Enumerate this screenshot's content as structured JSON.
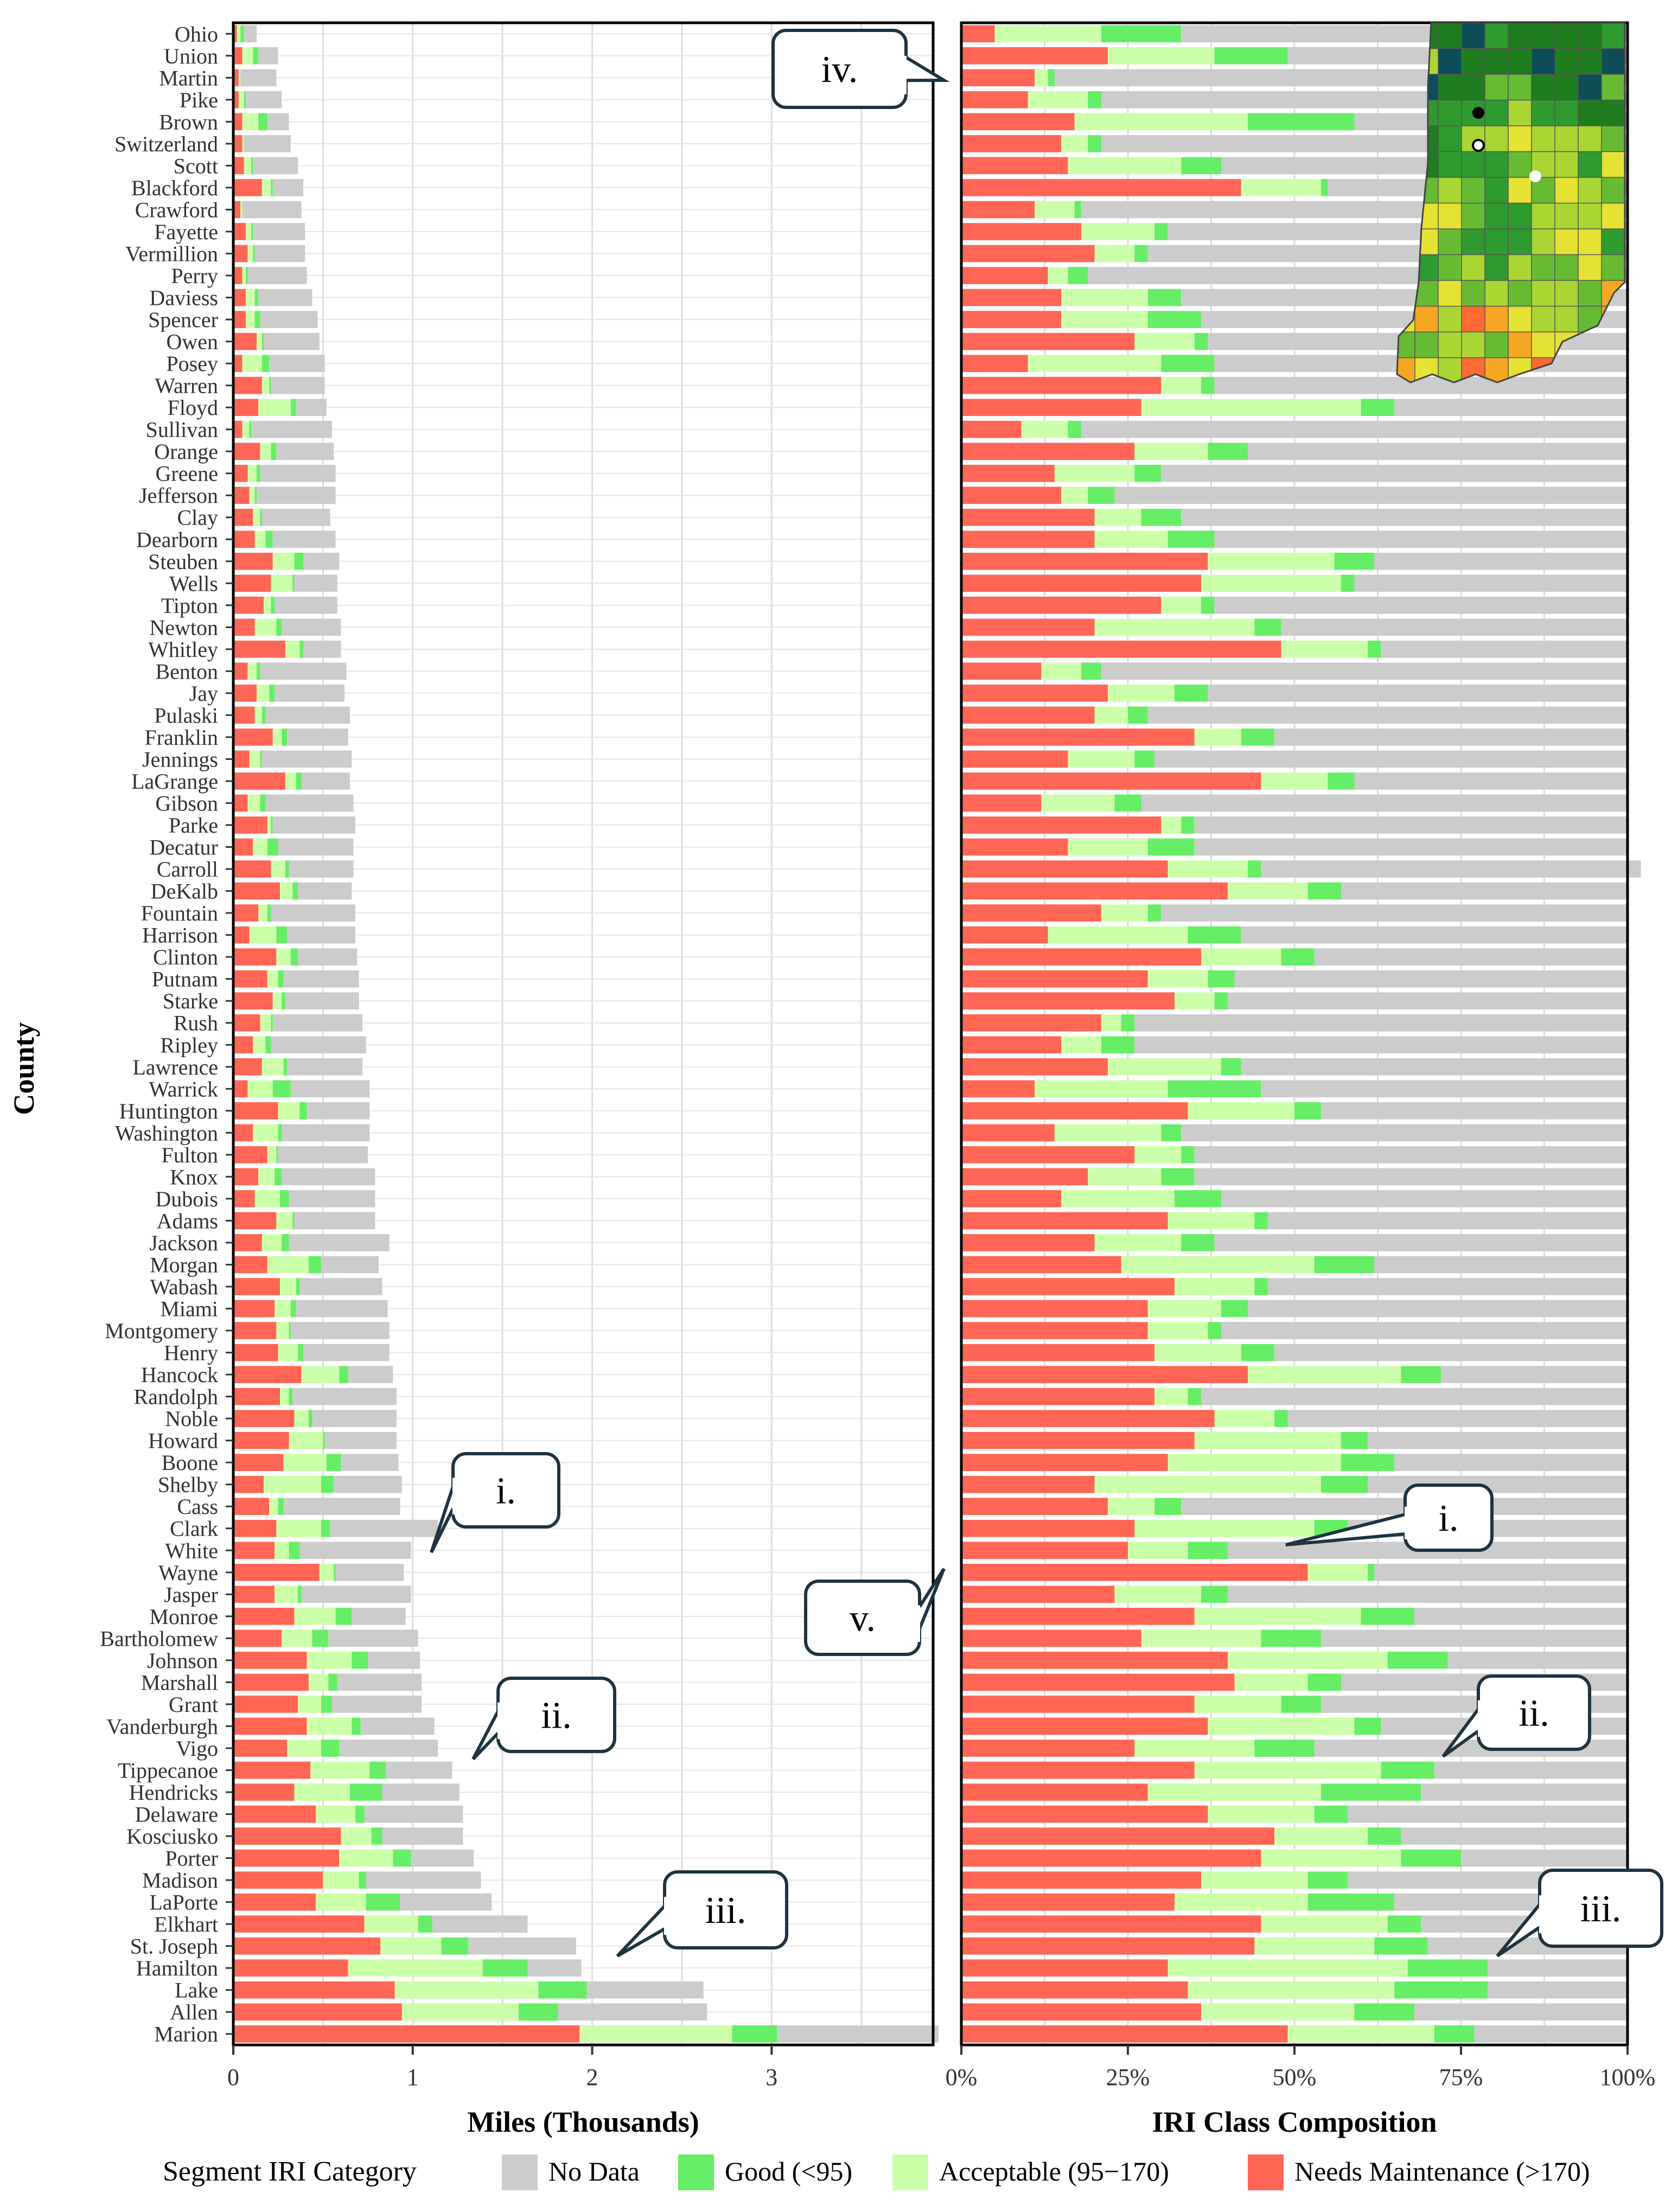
{
  "chart_data": {
    "type": "bar",
    "y_axis_title": "County",
    "legend": {
      "title": "Segment IRI Category",
      "placement": "bottom",
      "items": [
        {
          "key": "nodata",
          "label": "No Data",
          "color": "#cccccc"
        },
        {
          "key": "good",
          "label": "Good (<95)",
          "color": "#66ee66"
        },
        {
          "key": "acceptable",
          "label": "Acceptable (95−170)",
          "color": "#ccffaa"
        },
        {
          "key": "needs",
          "label": "Needs Maintenance (>170)",
          "color": "#ff6655"
        }
      ]
    },
    "category_order": [
      "needs",
      "acceptable",
      "good",
      "nodata"
    ],
    "counties": [
      "Ohio",
      "Union",
      "Martin",
      "Pike",
      "Brown",
      "Switzerland",
      "Scott",
      "Blackford",
      "Crawford",
      "Fayette",
      "Vermillion",
      "Perry",
      "Daviess",
      "Spencer",
      "Owen",
      "Posey",
      "Warren",
      "Floyd",
      "Sullivan",
      "Orange",
      "Greene",
      "Jefferson",
      "Clay",
      "Dearborn",
      "Steuben",
      "Wells",
      "Tipton",
      "Newton",
      "Whitley",
      "Benton",
      "Jay",
      "Pulaski",
      "Franklin",
      "Jennings",
      "LaGrange",
      "Gibson",
      "Parke",
      "Decatur",
      "Carroll",
      "DeKalb",
      "Fountain",
      "Harrison",
      "Clinton",
      "Putnam",
      "Starke",
      "Rush",
      "Ripley",
      "Lawrence",
      "Warrick",
      "Huntington",
      "Washington",
      "Fulton",
      "Knox",
      "Dubois",
      "Adams",
      "Jackson",
      "Morgan",
      "Wabash",
      "Miami",
      "Montgomery",
      "Henry",
      "Hancock",
      "Randolph",
      "Noble",
      "Howard",
      "Boone",
      "Shelby",
      "Cass",
      "Clark",
      "White",
      "Wayne",
      "Jasper",
      "Monroe",
      "Bartholomew",
      "Johnson",
      "Marshall",
      "Grant",
      "Vanderburgh",
      "Vigo",
      "Tippecanoe",
      "Hendricks",
      "Delaware",
      "Kosciusko",
      "Porter",
      "Madison",
      "LaPorte",
      "Elkhart",
      "St. Joseph",
      "Hamilton",
      "Lake",
      "Allen",
      "Marion"
    ],
    "panels": [
      {
        "id": "miles",
        "xlabel": "Miles (Thousands)",
        "xlim": [
          0,
          3.9
        ],
        "xticks": [
          0,
          1,
          2,
          3
        ],
        "xtick_labels": [
          "0",
          "1",
          "2",
          "3"
        ],
        "series": [
          {
            "key": "needs",
            "values": [
              0.02,
              0.05,
              0.03,
              0.03,
              0.05,
              0.05,
              0.06,
              0.16,
              0.04,
              0.07,
              0.08,
              0.05,
              0.07,
              0.07,
              0.13,
              0.05,
              0.16,
              0.14,
              0.05,
              0.15,
              0.08,
              0.09,
              0.11,
              0.12,
              0.22,
              0.21,
              0.17,
              0.12,
              0.29,
              0.08,
              0.13,
              0.12,
              0.22,
              0.09,
              0.29,
              0.08,
              0.19,
              0.11,
              0.21,
              0.26,
              0.14,
              0.09,
              0.24,
              0.19,
              0.22,
              0.15,
              0.11,
              0.16,
              0.08,
              0.25,
              0.11,
              0.19,
              0.14,
              0.12,
              0.24,
              0.16,
              0.19,
              0.26,
              0.23,
              0.24,
              0.25,
              0.38,
              0.26,
              0.34,
              0.31,
              0.28,
              0.17,
              0.2,
              0.24,
              0.23,
              0.48,
              0.23,
              0.34,
              0.27,
              0.41,
              0.42,
              0.36,
              0.41,
              0.3,
              0.43,
              0.34,
              0.46,
              0.6,
              0.59,
              0.5,
              0.46,
              0.73,
              0.82,
              0.64,
              0.9,
              0.94,
              1.93
            ]
          },
          {
            "key": "acceptable",
            "values": [
              0.02,
              0.06,
              0.01,
              0.03,
              0.09,
              0.01,
              0.04,
              0.05,
              0.01,
              0.03,
              0.03,
              0.02,
              0.05,
              0.05,
              0.03,
              0.11,
              0.04,
              0.18,
              0.04,
              0.06,
              0.05,
              0.03,
              0.04,
              0.06,
              0.12,
              0.12,
              0.04,
              0.12,
              0.08,
              0.05,
              0.07,
              0.04,
              0.05,
              0.06,
              0.06,
              0.07,
              0.02,
              0.08,
              0.08,
              0.07,
              0.05,
              0.15,
              0.08,
              0.06,
              0.05,
              0.06,
              0.07,
              0.12,
              0.14,
              0.12,
              0.14,
              0.05,
              0.09,
              0.14,
              0.09,
              0.11,
              0.23,
              0.09,
              0.09,
              0.07,
              0.11,
              0.21,
              0.05,
              0.08,
              0.19,
              0.24,
              0.32,
              0.05,
              0.25,
              0.08,
              0.08,
              0.13,
              0.23,
              0.17,
              0.25,
              0.11,
              0.13,
              0.25,
              0.19,
              0.33,
              0.31,
              0.22,
              0.17,
              0.3,
              0.2,
              0.28,
              0.3,
              0.34,
              0.75,
              0.8,
              0.65,
              0.85
            ]
          },
          {
            "key": "good",
            "values": [
              0.02,
              0.03,
              0.0,
              0.01,
              0.05,
              0.0,
              0.01,
              0.01,
              0.0,
              0.01,
              0.01,
              0.01,
              0.02,
              0.03,
              0.01,
              0.04,
              0.01,
              0.03,
              0.01,
              0.03,
              0.02,
              0.01,
              0.01,
              0.04,
              0.05,
              0.01,
              0.02,
              0.03,
              0.02,
              0.02,
              0.03,
              0.02,
              0.03,
              0.01,
              0.03,
              0.03,
              0.01,
              0.06,
              0.02,
              0.03,
              0.02,
              0.06,
              0.04,
              0.03,
              0.02,
              0.01,
              0.03,
              0.02,
              0.1,
              0.04,
              0.02,
              0.01,
              0.04,
              0.05,
              0.01,
              0.04,
              0.07,
              0.02,
              0.03,
              0.01,
              0.03,
              0.05,
              0.02,
              0.02,
              0.01,
              0.08,
              0.07,
              0.03,
              0.05,
              0.06,
              0.01,
              0.02,
              0.09,
              0.09,
              0.09,
              0.05,
              0.06,
              0.05,
              0.1,
              0.09,
              0.18,
              0.05,
              0.06,
              0.1,
              0.04,
              0.19,
              0.08,
              0.15,
              0.25,
              0.27,
              0.22,
              0.25
            ]
          },
          {
            "key": "nodata",
            "values": [
              0.07,
              0.11,
              0.2,
              0.2,
              0.12,
              0.26,
              0.25,
              0.17,
              0.33,
              0.29,
              0.28,
              0.33,
              0.3,
              0.32,
              0.31,
              0.31,
              0.3,
              0.17,
              0.45,
              0.32,
              0.42,
              0.44,
              0.38,
              0.35,
              0.2,
              0.24,
              0.35,
              0.33,
              0.21,
              0.48,
              0.39,
              0.47,
              0.34,
              0.5,
              0.27,
              0.49,
              0.46,
              0.42,
              0.36,
              0.3,
              0.47,
              0.38,
              0.33,
              0.42,
              0.41,
              0.5,
              0.53,
              0.42,
              0.44,
              0.35,
              0.49,
              0.5,
              0.52,
              0.48,
              0.45,
              0.56,
              0.32,
              0.46,
              0.51,
              0.55,
              0.48,
              0.25,
              0.58,
              0.47,
              0.4,
              0.32,
              0.38,
              0.65,
              0.6,
              0.62,
              0.38,
              0.61,
              0.3,
              0.5,
              0.29,
              0.47,
              0.5,
              0.41,
              0.55,
              0.37,
              0.43,
              0.55,
              0.45,
              0.35,
              0.64,
              0.51,
              0.53,
              0.6,
              0.3,
              0.65,
              0.83,
              0.9
            ]
          }
        ]
      },
      {
        "id": "composition",
        "xlabel": "IRI Class Composition",
        "xlim": [
          0,
          100
        ],
        "xticks": [
          0,
          25,
          50,
          75,
          100
        ],
        "xtick_labels": [
          "0%",
          "25%",
          "50%",
          "75%",
          "100%"
        ],
        "series": [
          {
            "key": "needs",
            "values": [
              5,
              22,
              11,
              10,
              17,
              15,
              16,
              42,
              11,
              18,
              20,
              13,
              15,
              15,
              26,
              10,
              30,
              27,
              9,
              26,
              14,
              15,
              20,
              20,
              37,
              36,
              30,
              20,
              48,
              12,
              22,
              20,
              35,
              16,
              45,
              12,
              30,
              16,
              31,
              40,
              21,
              13,
              36,
              28,
              32,
              21,
              15,
              22,
              11,
              34,
              14,
              26,
              19,
              15,
              31,
              20,
              24,
              32,
              28,
              28,
              29,
              43,
              29,
              38,
              35,
              31,
              20,
              22,
              26,
              25,
              52,
              23,
              35,
              27,
              40,
              41,
              35,
              37,
              26,
              35,
              28,
              37,
              47,
              45,
              36,
              32,
              45,
              44,
              31,
              34,
              36,
              49
            ]
          },
          {
            "key": "acceptable",
            "values": [
              16,
              16,
              2,
              9,
              26,
              4,
              17,
              12,
              6,
              11,
              6,
              3,
              13,
              13,
              9,
              20,
              6,
              33,
              7,
              11,
              12,
              4,
              7,
              11,
              19,
              21,
              6,
              24,
              13,
              6,
              10,
              5,
              7,
              10,
              10,
              11,
              3,
              12,
              12,
              12,
              7,
              21,
              12,
              9,
              6,
              3,
              6,
              17,
              20,
              16,
              16,
              7,
              11,
              17,
              13,
              13,
              29,
              12,
              11,
              9,
              13,
              23,
              5,
              9,
              22,
              26,
              34,
              7,
              27,
              9,
              9,
              13,
              25,
              18,
              24,
              11,
              13,
              22,
              18,
              28,
              26,
              16,
              14,
              21,
              16,
              20,
              19,
              18,
              36,
              31,
              23,
              22
            ]
          },
          {
            "key": "good",
            "values": [
              12,
              11,
              1,
              2,
              16,
              2,
              6,
              1,
              1,
              2,
              2,
              3,
              5,
              8,
              2,
              8,
              2,
              5,
              2,
              6,
              4,
              4,
              6,
              7,
              6,
              2,
              2,
              4,
              2,
              3,
              5,
              3,
              5,
              3,
              4,
              4,
              2,
              7,
              2,
              5,
              2,
              8,
              5,
              4,
              2,
              2,
              5,
              3,
              14,
              4,
              3,
              2,
              5,
              7,
              2,
              5,
              9,
              2,
              4,
              2,
              5,
              6,
              2,
              2,
              4,
              8,
              7,
              4,
              5,
              6,
              1,
              4,
              8,
              9,
              9,
              5,
              6,
              4,
              9,
              8,
              15,
              5,
              5,
              9,
              6,
              13,
              5,
              8,
              12,
              14,
              9,
              6
            ]
          },
          {
            "key": "nodata",
            "values": [
              67,
              51,
              86,
              79,
              41,
              79,
              61,
              45,
              82,
              69,
              72,
              81,
              67,
              64,
              63,
              62,
              62,
              35,
              82,
              57,
              70,
              77,
              67,
              62,
              38,
              41,
              62,
              52,
              37,
              79,
              63,
              72,
              53,
              71,
              41,
              73,
              65,
              65,
              57,
              43,
              70,
              58,
              47,
              59,
              60,
              74,
              74,
              58,
              55,
              46,
              67,
              65,
              65,
              61,
              54,
              62,
              38,
              54,
              57,
              61,
              53,
              28,
              64,
              51,
              39,
              35,
              39,
              67,
              42,
              60,
              38,
              60,
              32,
              46,
              27,
              43,
              46,
              37,
              47,
              29,
              31,
              42,
              34,
              25,
              42,
              35,
              31,
              30,
              21,
              21,
              32,
              23
            ]
          }
        ]
      }
    ],
    "callouts": [
      {
        "label": "i.",
        "panel": "miles"
      },
      {
        "label": "ii.",
        "panel": "miles"
      },
      {
        "label": "iii.",
        "panel": "miles"
      },
      {
        "label": "iv.",
        "panel": "composition"
      },
      {
        "label": "v.",
        "panel": "composition"
      },
      {
        "label": "i.",
        "panel": "composition"
      },
      {
        "label": "ii.",
        "panel": "composition"
      },
      {
        "label": "iii.",
        "panel": "composition"
      }
    ],
    "inset_map": {
      "colors": [
        "#0d4d57",
        "#1f7d1f",
        "#2f9a2f",
        "#66bb33",
        "#aad633",
        "#e5e233",
        "#f5a623",
        "#ff6a33"
      ]
    }
  }
}
